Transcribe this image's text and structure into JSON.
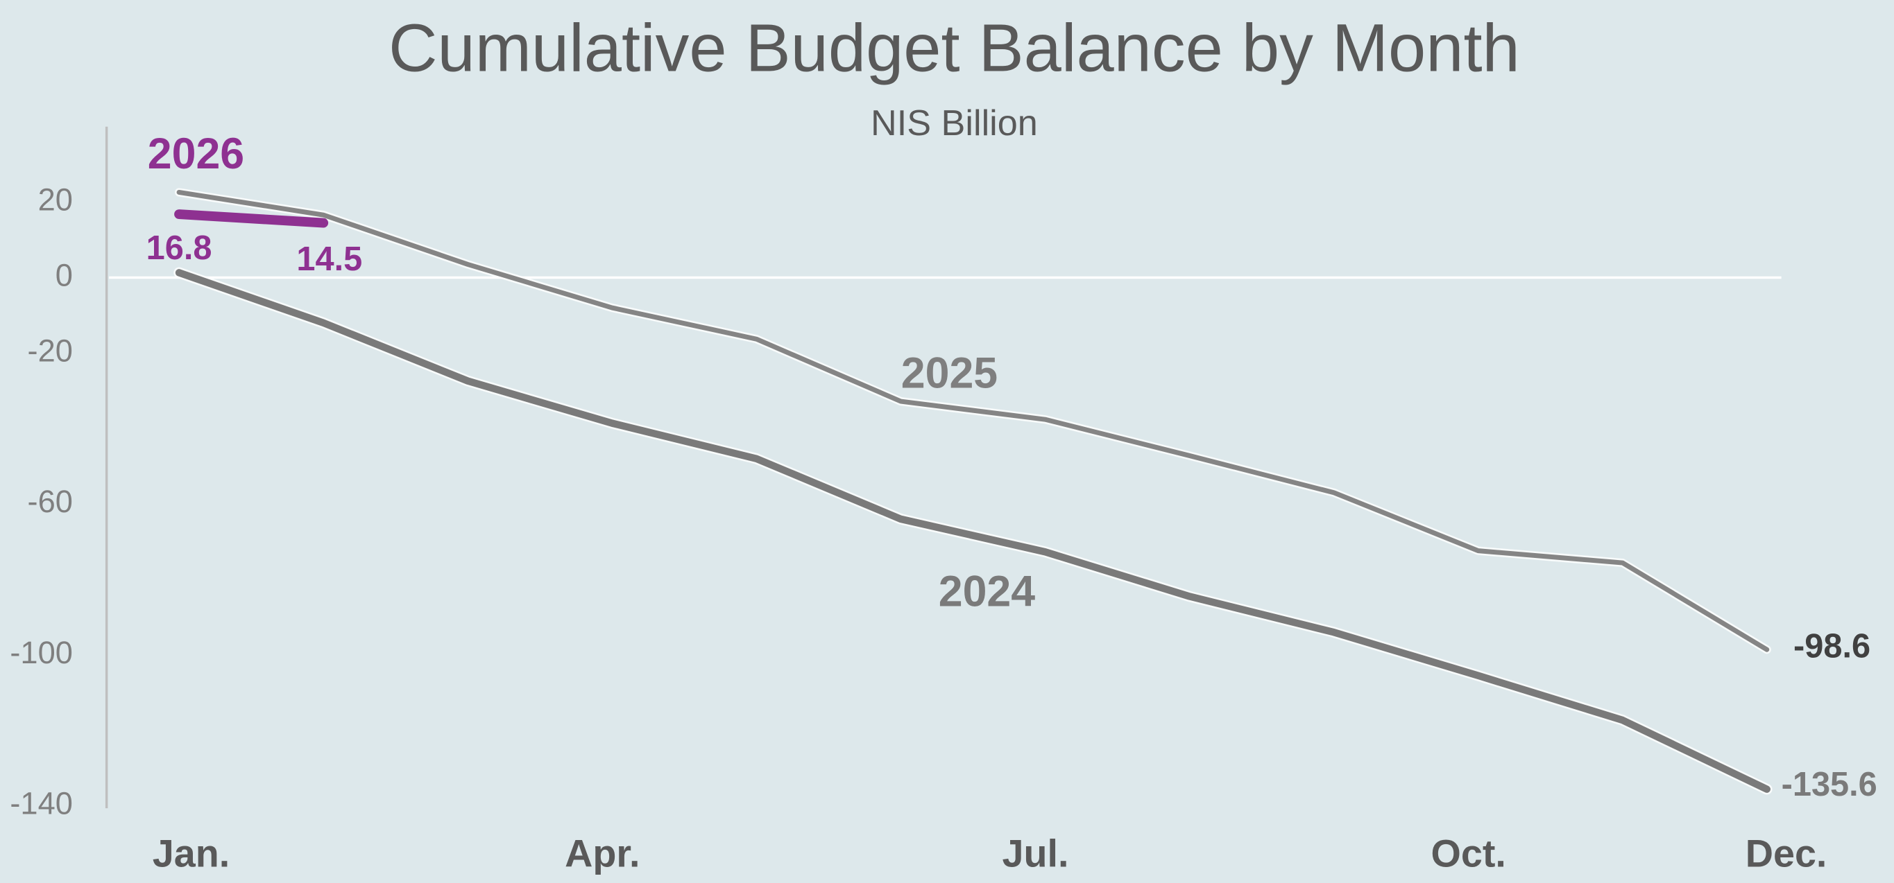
{
  "chart_data": {
    "type": "line",
    "title": "Cumulative Budget Balance by Month",
    "subtitle": "NIS Billion",
    "categories": [
      "Jan.",
      null,
      null,
      "Apr.",
      null,
      null,
      "Jul.",
      null,
      null,
      "Oct.",
      null,
      "Dec."
    ],
    "ylim": [
      -140,
      40
    ],
    "yticks": [
      20,
      0,
      -20,
      -60,
      -100,
      -140
    ],
    "series": [
      {
        "name": "2024",
        "color": "#7a7a7a",
        "values": [
          1.3,
          -12,
          -27.4,
          -38.6,
          -48,
          -64,
          -72.7,
          -84.5,
          -94,
          -105.5,
          -117.3,
          -135.6
        ]
      },
      {
        "name": "2025",
        "color": "#858585",
        "values": [
          22.6,
          16.6,
          3.5,
          -8,
          -16.3,
          -32.8,
          -37.6,
          -47.2,
          -57,
          -72.4,
          -75.6,
          -98.6
        ]
      },
      {
        "name": "2026",
        "color": "#8e3191",
        "values": [
          16.8,
          14.5,
          null,
          null,
          null,
          null,
          null,
          null,
          null,
          null,
          null,
          null
        ]
      }
    ]
  }
}
